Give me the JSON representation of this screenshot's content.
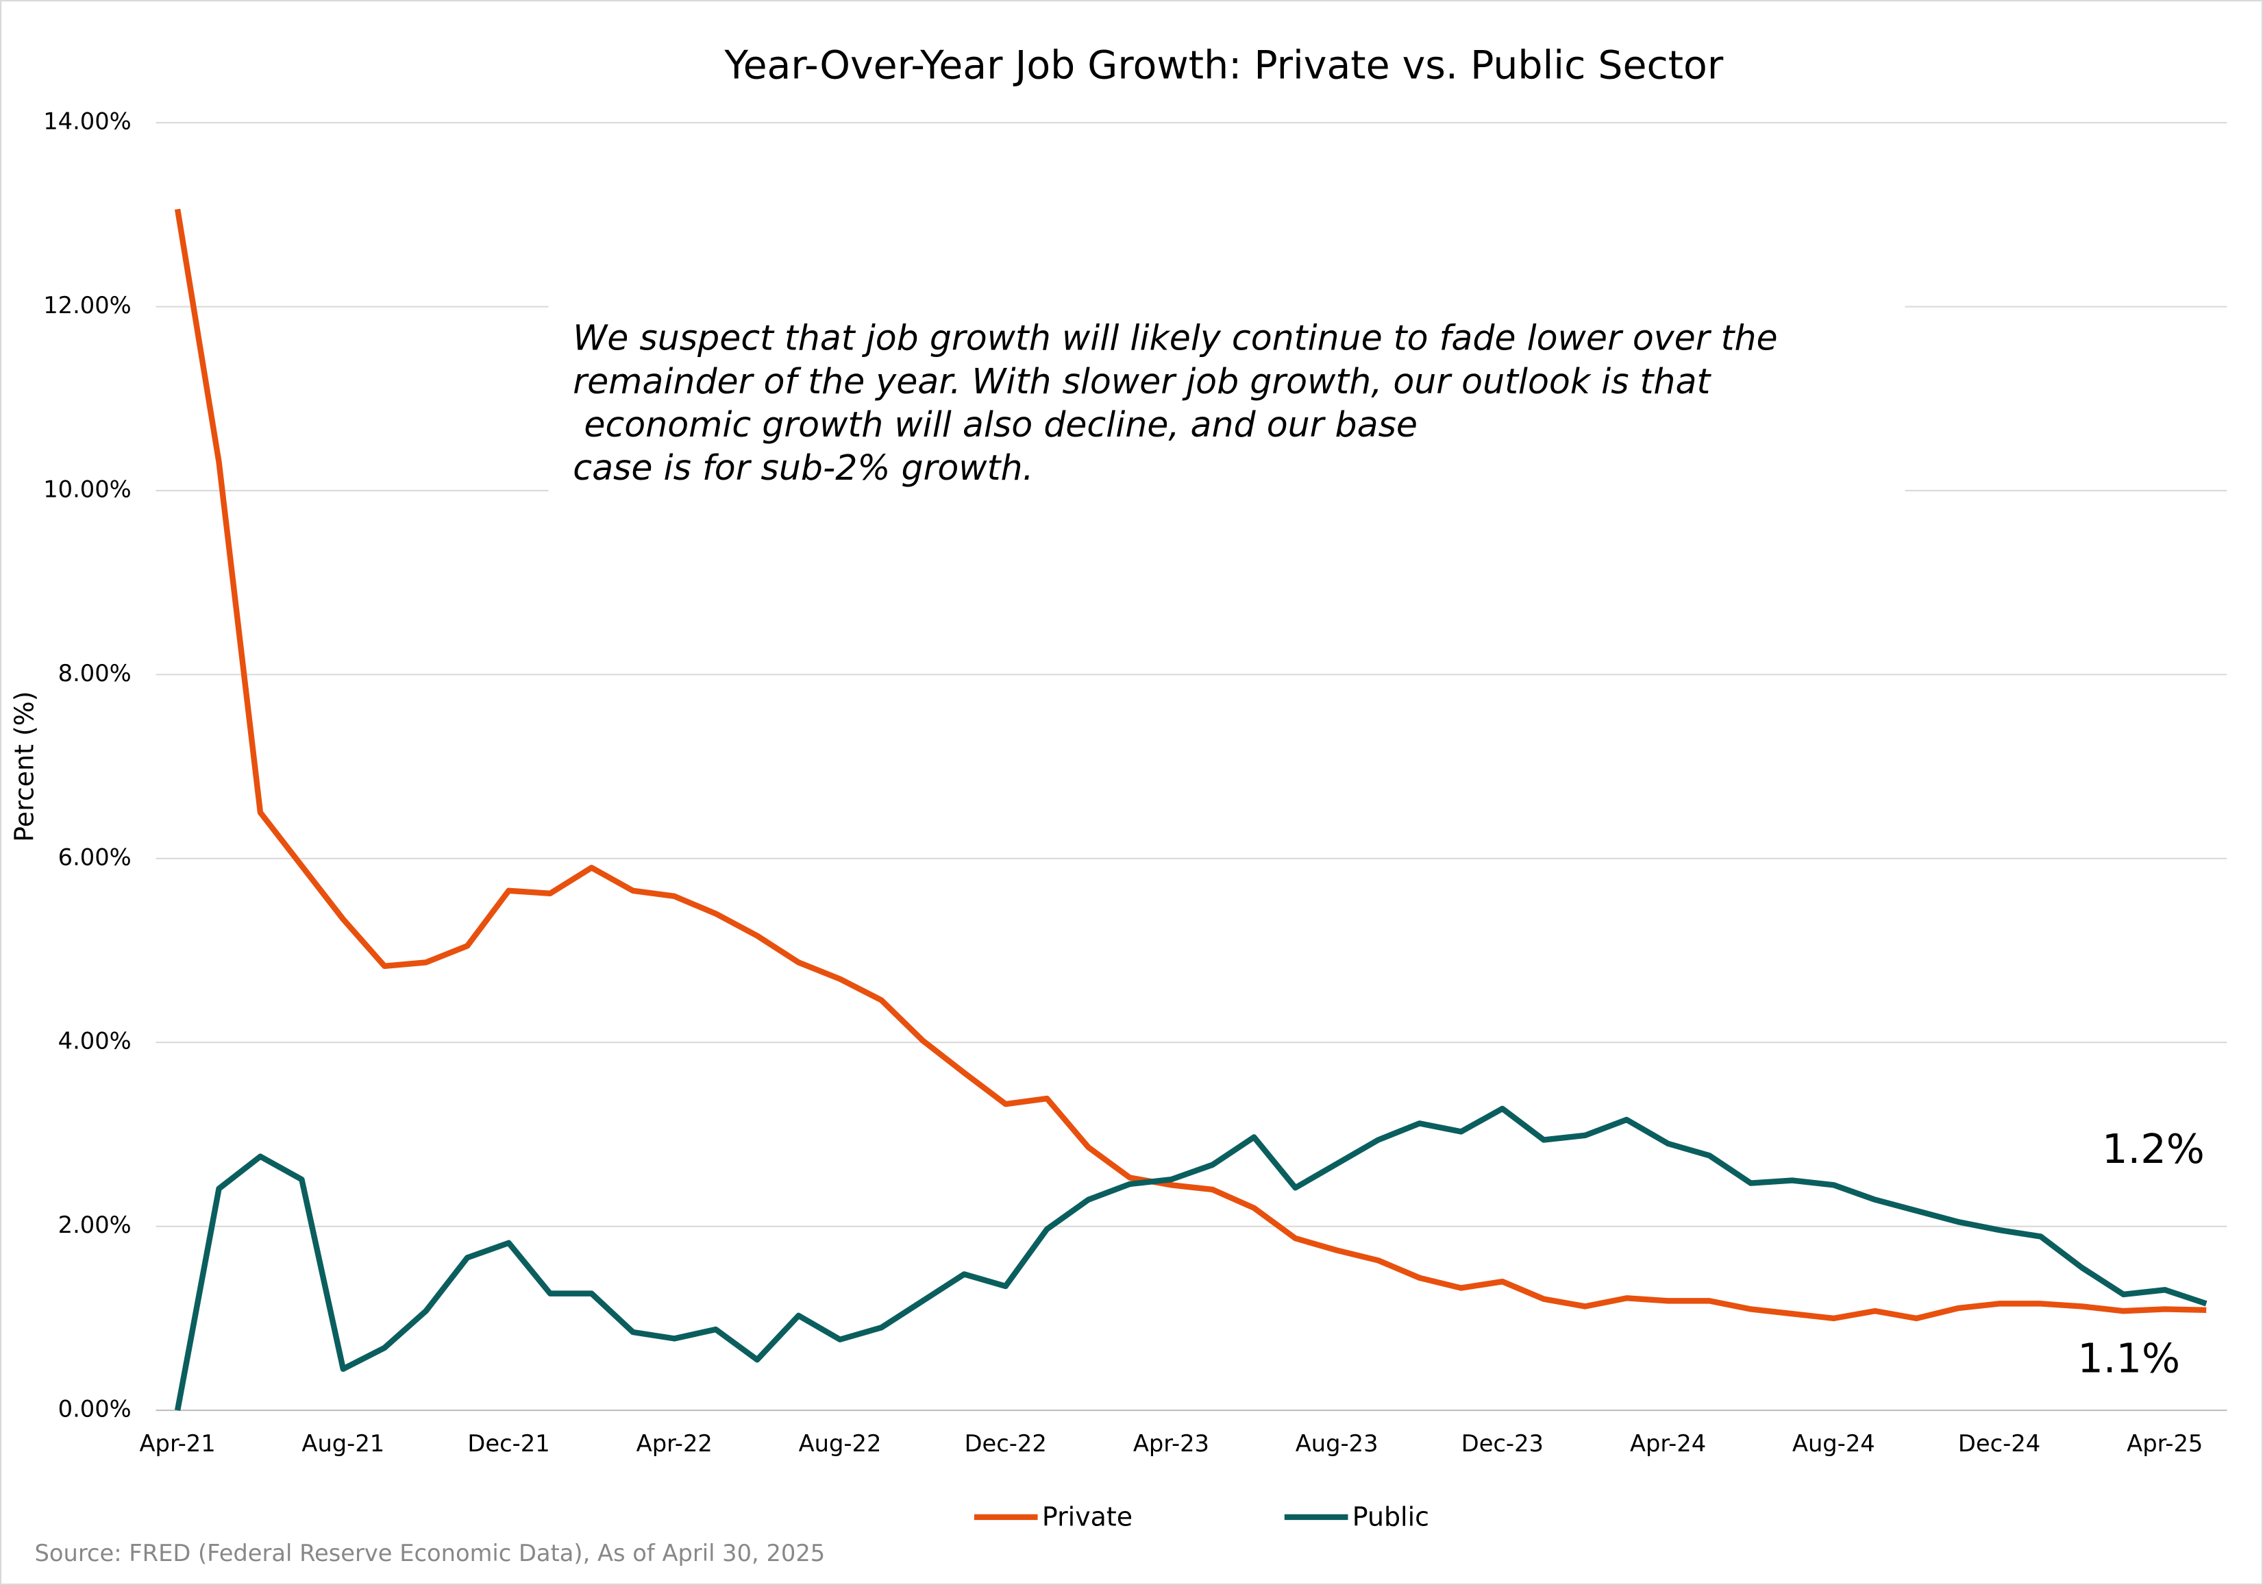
{
  "chart_data": {
    "type": "line",
    "title": "Year-Over-Year Job Growth: Private vs. Public Sector",
    "y_label": "Percent (%)",
    "source": "Source: FRED (Federal Reserve Economic Data), As of April 30, 2025",
    "annotation_lines": [
      "We suspect that job growth will likely continue to fade lower over the",
      "remainder of the year. With slower job growth, our outlook is that",
      " economic growth will also decline, and our base",
      "case is for sub-2% growth."
    ],
    "end_labels": [
      "1.2%",
      "1.1%"
    ],
    "categories": [
      "Apr-21",
      null,
      null,
      null,
      "Aug-21",
      null,
      null,
      null,
      "Dec-21",
      null,
      null,
      null,
      "Apr-22",
      null,
      null,
      null,
      "Aug-22",
      null,
      null,
      null,
      "Dec-22",
      null,
      null,
      null,
      "Apr-23",
      null,
      null,
      null,
      "Aug-23",
      null,
      null,
      null,
      "Dec-23",
      null,
      null,
      null,
      "Apr-24",
      null,
      null,
      null,
      "Aug-24",
      null,
      null,
      null,
      "Dec-24",
      null,
      null,
      null,
      "Apr-25",
      null
    ],
    "series": [
      {
        "name": "Private",
        "color": "#e8500e",
        "values": [
          13.06,
          10.31,
          6.5,
          5.92,
          5.34,
          4.83,
          4.87,
          5.05,
          5.65,
          5.62,
          5.9,
          5.65,
          5.59,
          5.4,
          5.16,
          4.87,
          4.69,
          4.46,
          4.02,
          3.67,
          3.33,
          3.39,
          2.86,
          2.53,
          2.45,
          2.4,
          2.2,
          1.87,
          1.74,
          1.63,
          1.44,
          1.33,
          1.4,
          1.21,
          1.13,
          1.22,
          1.19,
          1.19,
          1.1,
          1.05,
          1.0,
          1.08,
          1.0,
          1.11,
          1.16,
          1.16,
          1.13,
          1.08,
          1.1,
          1.09
        ]
      },
      {
        "name": "Public",
        "color": "#0b5e5e",
        "values": [
          0,
          2.41,
          2.76,
          2.51,
          0.45,
          0.68,
          1.08,
          1.66,
          1.82,
          1.27,
          1.27,
          0.85,
          0.78,
          0.88,
          0.55,
          1.03,
          0.77,
          0.9,
          1.19,
          1.48,
          1.35,
          1.97,
          2.29,
          2.46,
          2.51,
          2.67,
          2.97,
          2.42,
          2.68,
          2.94,
          3.12,
          3.03,
          3.28,
          2.94,
          2.99,
          3.16,
          2.9,
          2.77,
          2.47,
          2.5,
          2.45,
          2.29,
          2.17,
          2.05,
          1.96,
          1.89,
          1.55,
          1.26,
          1.31,
          1.16
        ]
      }
    ],
    "ylim": [
      0,
      14
    ],
    "yticks": [
      {
        "value": 0,
        "label": "0.00%"
      },
      {
        "value": 2,
        "label": "2.00%"
      },
      {
        "value": 4,
        "label": "4.00%"
      },
      {
        "value": 6,
        "label": "6.00%"
      },
      {
        "value": 8,
        "label": "8.00%"
      },
      {
        "value": 10,
        "label": "10.00%"
      },
      {
        "value": 12,
        "label": "12.00%"
      },
      {
        "value": 14,
        "label": "14.00%"
      }
    ],
    "grid": true,
    "legend": "bottom"
  }
}
